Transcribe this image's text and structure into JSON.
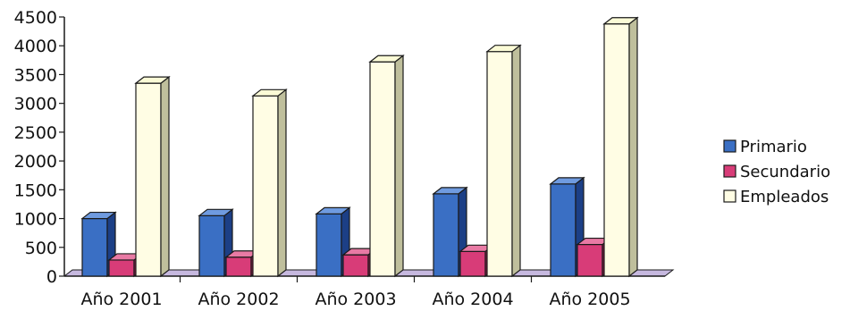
{
  "chart_data": {
    "type": "bar",
    "categories": [
      "Año 2001",
      "Año 2002",
      "Año 2003",
      "Año 2004",
      "Año 2005"
    ],
    "series": [
      {
        "name": "Primario",
        "values": [
          1000,
          1050,
          1080,
          1430,
          1600
        ]
      },
      {
        "name": "Secundario",
        "values": [
          280,
          330,
          370,
          430,
          550
        ]
      },
      {
        "name": "Empleados",
        "values": [
          3350,
          3130,
          3720,
          3900,
          4380
        ]
      }
    ],
    "yticks": [
      0,
      500,
      1000,
      1500,
      2000,
      2500,
      3000,
      3500,
      4000,
      4500
    ],
    "ylim": [
      0,
      4500
    ],
    "title": "",
    "xlabel": "",
    "ylabel": "",
    "legend_position": "right",
    "three_d": true,
    "colors": {
      "Primario": {
        "front": "#3a6fc4",
        "side": "#1c3f86",
        "top": "#6f9be0"
      },
      "Secundario": {
        "front": "#d83c78",
        "side": "#8e1c48",
        "top": "#e87aa4"
      },
      "Empleados": {
        "front": "#fffde4",
        "side": "#bfbf9c",
        "top": "#fbfbd6"
      }
    },
    "floor_color": "#c6b8df",
    "edge_color": "#1a1a1a"
  }
}
